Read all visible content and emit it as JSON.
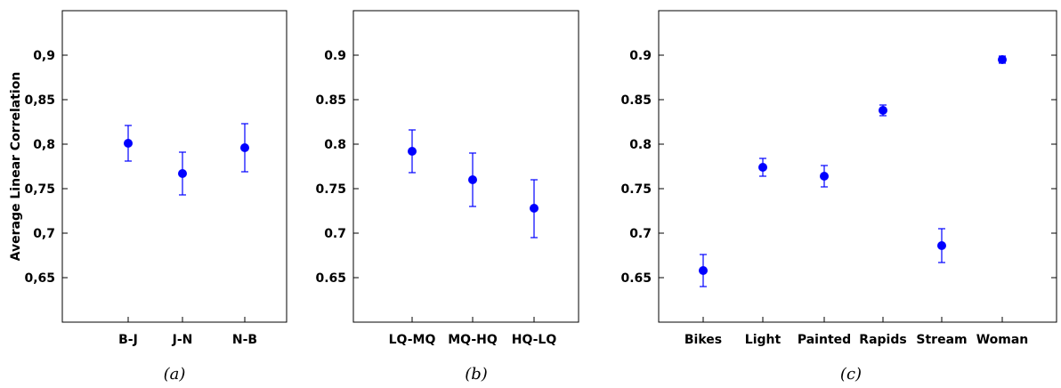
{
  "chart_data": [
    {
      "type": "scatter",
      "caption": "(a)",
      "ylabel": "Average Linear Correlation",
      "ylim": [
        0.6,
        0.95
      ],
      "yticks": [
        0.65,
        0.7,
        0.75,
        0.8,
        0.85,
        0.9
      ],
      "ytick_labels": [
        "0,65",
        "0,7",
        "0,75",
        "0,8",
        "0,85",
        "0,9"
      ],
      "categories": [
        "B-J",
        "J-N",
        "N-B"
      ],
      "values": [
        0.801,
        0.767,
        0.796
      ],
      "error_low": [
        0.781,
        0.743,
        0.769
      ],
      "error_high": [
        0.821,
        0.791,
        0.823
      ],
      "marker_color": "#0000ff",
      "grid": false
    },
    {
      "type": "scatter",
      "caption": "(b)",
      "ylabel": "",
      "ylim": [
        0.6,
        0.95
      ],
      "yticks": [
        0.65,
        0.7,
        0.75,
        0.8,
        0.85,
        0.9
      ],
      "ytick_labels": [
        "0.65",
        "0.7",
        "0.75",
        "0.8",
        "0.85",
        "0.9"
      ],
      "categories": [
        "LQ-MQ",
        "MQ-HQ",
        "HQ-LQ"
      ],
      "values": [
        0.792,
        0.76,
        0.728
      ],
      "error_low": [
        0.768,
        0.73,
        0.695
      ],
      "error_high": [
        0.816,
        0.79,
        0.76
      ],
      "marker_color": "#0000ff",
      "grid": false
    },
    {
      "type": "scatter",
      "caption": "(c)",
      "ylabel": "",
      "ylim": [
        0.6,
        0.95
      ],
      "yticks": [
        0.65,
        0.7,
        0.75,
        0.8,
        0.85,
        0.9
      ],
      "ytick_labels": [
        "0.65",
        "0.7",
        "0.75",
        "0.8",
        "0.85",
        "0.9"
      ],
      "categories": [
        "Bikes",
        "Light",
        "Painted",
        "Rapids",
        "Stream",
        "Woman"
      ],
      "values": [
        0.658,
        0.774,
        0.764,
        0.838,
        0.686,
        0.895
      ],
      "error_low": [
        0.64,
        0.764,
        0.752,
        0.832,
        0.667,
        0.891
      ],
      "error_high": [
        0.676,
        0.784,
        0.776,
        0.844,
        0.705,
        0.899
      ],
      "marker_color": "#0000ff",
      "grid": false
    }
  ]
}
